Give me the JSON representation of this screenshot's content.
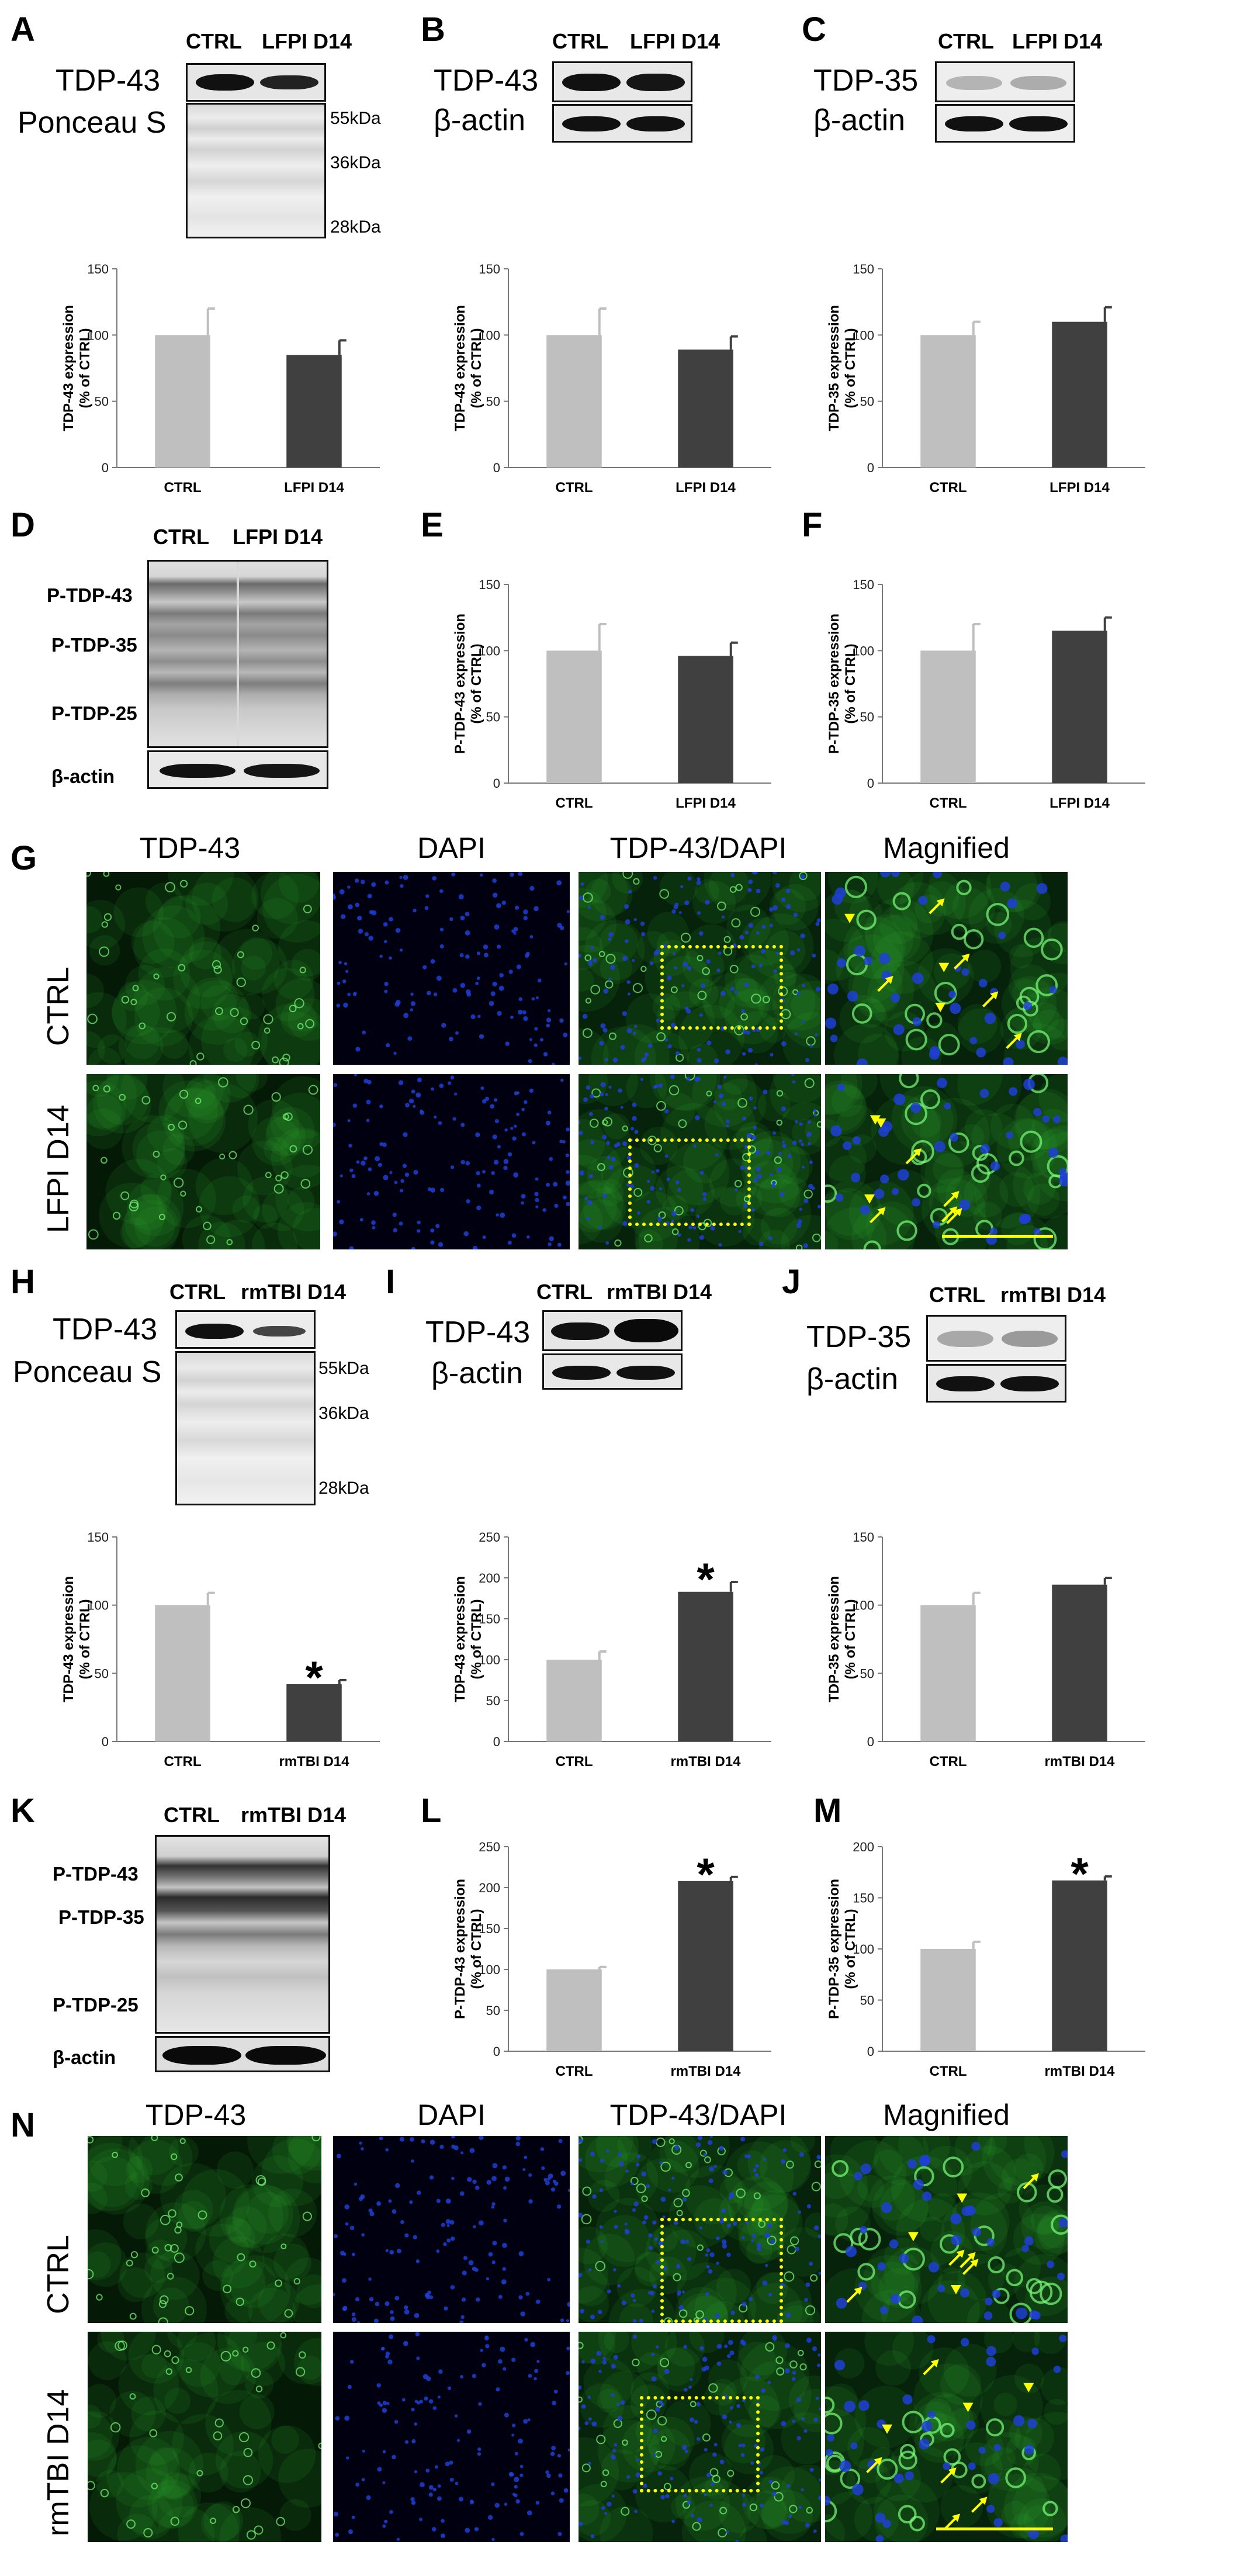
{
  "panels": {
    "A": {
      "label": "A",
      "lanes": [
        "CTRL",
        "LFPI D14"
      ],
      "rows": [
        "TDP-43",
        "Ponceau S"
      ],
      "markers": [
        "55kDa",
        "36kDa",
        "28kDa"
      ]
    },
    "B": {
      "label": "B",
      "lanes": [
        "CTRL",
        "LFPI D14"
      ],
      "rows": [
        "TDP-43",
        "β-actin"
      ]
    },
    "C": {
      "label": "C",
      "lanes": [
        "CTRL",
        "LFPI D14"
      ],
      "rows": [
        "TDP-35",
        "β-actin"
      ]
    },
    "D": {
      "label": "D",
      "lanes": [
        "CTRL",
        "LFPI D14"
      ],
      "rows": [
        "P-TDP-43",
        "P-TDP-35",
        "P-TDP-25",
        "β-actin"
      ]
    },
    "E": {
      "label": "E"
    },
    "F": {
      "label": "F"
    },
    "G": {
      "label": "G",
      "columns": [
        "TDP-43",
        "DAPI",
        "TDP-43/DAPI",
        "Magnified"
      ],
      "rows": [
        "CTRL",
        "LFPI D14"
      ]
    },
    "H": {
      "label": "H",
      "lanes": [
        "CTRL",
        "rmTBI D14"
      ],
      "rows": [
        "TDP-43",
        "Ponceau S"
      ],
      "markers": [
        "55kDa",
        "36kDa",
        "28kDa"
      ]
    },
    "I": {
      "label": "I",
      "lanes": [
        "CTRL",
        "rmTBI D14"
      ],
      "rows": [
        "TDP-43",
        "β-actin"
      ]
    },
    "J": {
      "label": "J",
      "lanes": [
        "CTRL",
        "rmTBI D14"
      ],
      "rows": [
        "TDP-35",
        "β-actin"
      ]
    },
    "K": {
      "label": "K",
      "lanes": [
        "CTRL",
        "rmTBI D14"
      ],
      "rows": [
        "P-TDP-43",
        "P-TDP-35",
        "P-TDP-25",
        "β-actin"
      ]
    },
    "L": {
      "label": "L"
    },
    "M": {
      "label": "M"
    },
    "N": {
      "label": "N",
      "columns": [
        "TDP-43",
        "DAPI",
        "TDP-43/DAPI",
        "Magnified"
      ],
      "rows": [
        "CTRL",
        "rmTBI D14"
      ]
    }
  },
  "colors": {
    "ctrl_bar": "#bfbfbf",
    "treat_bar": "#404040",
    "fluor_green": "#2fae2f",
    "fluor_blue": "#1f3fd6",
    "marker_yellow": "#ffff00"
  },
  "chart_data": [
    {
      "panel": "A",
      "type": "bar",
      "categories": [
        "CTRL",
        "LFPI D14"
      ],
      "values": [
        100,
        85
      ],
      "errors": [
        20,
        11
      ],
      "ylabel": "TDP-43 expression (% of CTRL)",
      "ylim": [
        0,
        150
      ],
      "yticks": [
        0,
        50,
        100,
        150
      ],
      "significant": [
        false,
        false
      ]
    },
    {
      "panel": "B",
      "type": "bar",
      "categories": [
        "CTRL",
        "LFPI D14"
      ],
      "values": [
        100,
        89
      ],
      "errors": [
        20,
        10
      ],
      "ylabel": "TDP-43 expression (% of CTRL)",
      "ylim": [
        0,
        150
      ],
      "yticks": [
        0,
        50,
        100,
        150
      ],
      "significant": [
        false,
        false
      ]
    },
    {
      "panel": "C",
      "type": "bar",
      "categories": [
        "CTRL",
        "LFPI D14"
      ],
      "values": [
        100,
        110
      ],
      "errors": [
        10,
        11
      ],
      "ylabel": "TDP-35 expression (% of CTRL)",
      "ylim": [
        0,
        150
      ],
      "yticks": [
        0,
        50,
        100,
        150
      ],
      "significant": [
        false,
        false
      ]
    },
    {
      "panel": "E",
      "type": "bar",
      "categories": [
        "CTRL",
        "LFPI D14"
      ],
      "values": [
        100,
        96
      ],
      "errors": [
        20,
        10
      ],
      "ylabel": "P-TDP-43 expression (% of CTRL)",
      "ylim": [
        0,
        150
      ],
      "yticks": [
        0,
        50,
        100,
        150
      ],
      "significant": [
        false,
        false
      ]
    },
    {
      "panel": "F",
      "type": "bar",
      "categories": [
        "CTRL",
        "LFPI D14"
      ],
      "values": [
        100,
        115
      ],
      "errors": [
        20,
        10
      ],
      "ylabel": "P-TDP-35 expression (% of CTRL)",
      "ylim": [
        0,
        150
      ],
      "yticks": [
        0,
        50,
        100,
        150
      ],
      "significant": [
        false,
        false
      ]
    },
    {
      "panel": "H",
      "type": "bar",
      "categories": [
        "CTRL",
        "rmTBI D14"
      ],
      "values": [
        100,
        42
      ],
      "errors": [
        9,
        3
      ],
      "ylabel": "TDP-43 expression (% of CTRL)",
      "ylim": [
        0,
        150
      ],
      "yticks": [
        0,
        50,
        100,
        150
      ],
      "significant": [
        false,
        true
      ]
    },
    {
      "panel": "I",
      "type": "bar",
      "categories": [
        "CTRL",
        "rmTBI D14"
      ],
      "values": [
        100,
        183
      ],
      "errors": [
        10,
        12
      ],
      "ylabel": "TDP-43 expression (% of CTRL)",
      "ylim": [
        0,
        250
      ],
      "yticks": [
        0,
        50,
        100,
        150,
        200,
        250
      ],
      "significant": [
        false,
        true
      ]
    },
    {
      "panel": "J",
      "type": "bar",
      "categories": [
        "CTRL",
        "rmTBI D14"
      ],
      "values": [
        100,
        115
      ],
      "errors": [
        9,
        5
      ],
      "ylabel": "TDP-35 expression (% of CTRL)",
      "ylim": [
        0,
        150
      ],
      "yticks": [
        0,
        50,
        100,
        150
      ],
      "significant": [
        false,
        false
      ]
    },
    {
      "panel": "L",
      "type": "bar",
      "categories": [
        "CTRL",
        "rmTBI D14"
      ],
      "values": [
        100,
        208
      ],
      "errors": [
        3,
        5
      ],
      "ylabel": "P-TDP-43 expression (% of CTRL)",
      "ylim": [
        0,
        250
      ],
      "yticks": [
        0,
        50,
        100,
        150,
        200,
        250
      ],
      "significant": [
        false,
        true
      ]
    },
    {
      "panel": "M",
      "type": "bar",
      "categories": [
        "CTRL",
        "rmTBI D14"
      ],
      "values": [
        100,
        167
      ],
      "errors": [
        7,
        4
      ],
      "ylabel": "P-TDP-35 expression (% of CTRL)",
      "ylim": [
        0,
        200
      ],
      "yticks": [
        0,
        50,
        100,
        150,
        200
      ],
      "significant": [
        false,
        true
      ]
    }
  ]
}
